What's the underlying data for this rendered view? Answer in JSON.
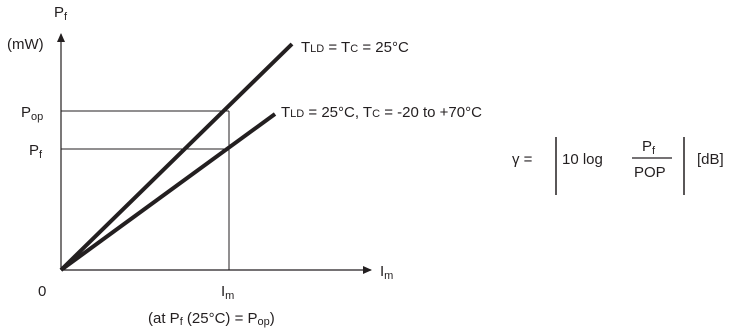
{
  "axes": {
    "y_label_main": "P",
    "y_label_sub": "f",
    "y_unit": "(mW)",
    "x_label_main": "I",
    "x_label_sub": "m",
    "origin": "0"
  },
  "ticks": {
    "pop_main": "P",
    "pop_sub": "op",
    "pf_main": "P",
    "pf_sub": "f",
    "im_main": "I",
    "im_sub": "m"
  },
  "note": {
    "prefix": "(at P",
    "sub": "f",
    "suffix": " (25°C) = P",
    "end_sub": "op",
    "close": ")"
  },
  "lines": {
    "upper": {
      "t_main": "T",
      "t_sub": "LD",
      "mid": " = T",
      "c_sub": "C",
      "tail": " = 25°C"
    },
    "lower": {
      "t_main": "T",
      "t_sub": "LD",
      "mid": " = 25°C, T",
      "c_sub": "C",
      "tail": " = -20 to +70°C"
    }
  },
  "formula": {
    "gamma": "γ =",
    "ten_log": "10 log",
    "num_main": "P",
    "num_sub": "f",
    "den": "POP",
    "unit": "[dB]"
  },
  "colors": {
    "ink": "#231f20"
  }
}
